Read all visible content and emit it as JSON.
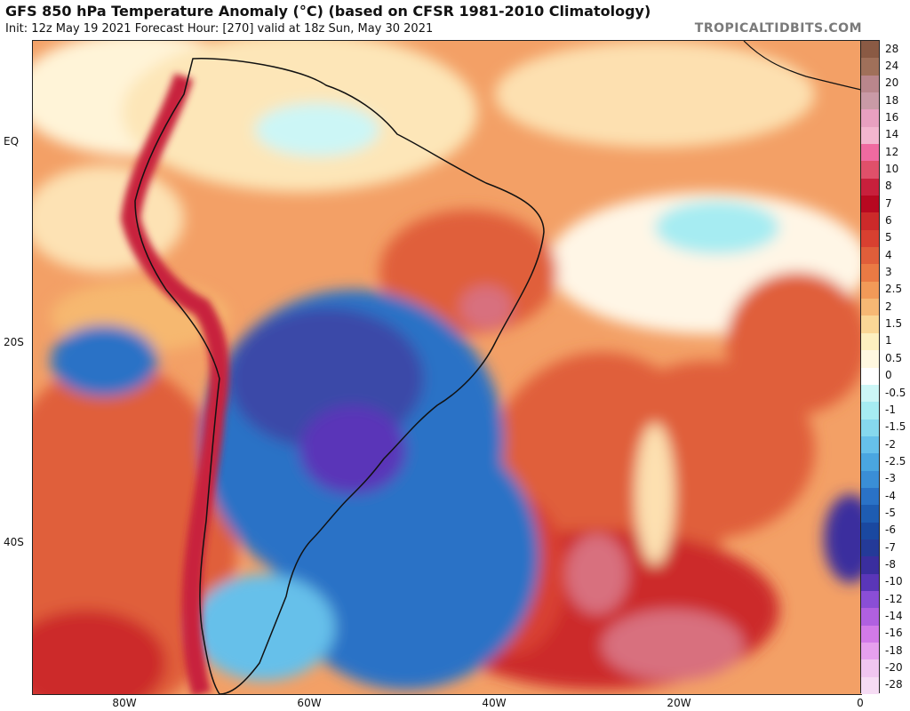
{
  "header": {
    "title": "GFS 850 hPa Temperature Anomaly (°C) (based on CFSR 1981-2010 Climatology)",
    "subtitle": "Init: 12z May 19 2021   Forecast Hour: [270]   valid at 18z Sun, May 30 2021",
    "brand": "TROPICALTIDBITS.COM"
  },
  "axes": {
    "lat_labels": [
      "EQ",
      "20S",
      "40S"
    ],
    "lon_labels": [
      "80W",
      "60W",
      "40W",
      "20W",
      "0"
    ]
  },
  "colorbar": {
    "levels": [
      "28",
      "24",
      "20",
      "18",
      "16",
      "14",
      "12",
      "10",
      "8",
      "7",
      "6",
      "5",
      "4",
      "3",
      "2.5",
      "2",
      "1.5",
      "1",
      "0.5",
      "0",
      "-0.5",
      "-1",
      "-1.5",
      "-2",
      "-2.5",
      "-3",
      "-4",
      "-5",
      "-6",
      "-7",
      "-8",
      "-10",
      "-12",
      "-14",
      "-16",
      "-18",
      "-20",
      "-28"
    ],
    "colors": [
      "#8a5a44",
      "#a0705a",
      "#b9868c",
      "#c99aa6",
      "#e8a0c0",
      "#f3b6cf",
      "#f06aa0",
      "#e0506a",
      "#c8203c",
      "#b80820",
      "#cc2a2a",
      "#d84030",
      "#e05e3a",
      "#ea7a44",
      "#f29a58",
      "#f6b874",
      "#fad796",
      "#fdf0c0",
      "#fff8e0",
      "#ffffff",
      "#ccf6f6",
      "#a6ecf2",
      "#86d8ee",
      "#66c0ea",
      "#4aa6e0",
      "#3a8ed6",
      "#2a72c6",
      "#1e5cb2",
      "#1a48a0",
      "#243a98",
      "#3a2e9e",
      "#5a36b8",
      "#8a4ed6",
      "#b060e0",
      "#d27ae8",
      "#e6a0ee",
      "#f0c6f0",
      "#f6dcf4"
    ]
  }
}
